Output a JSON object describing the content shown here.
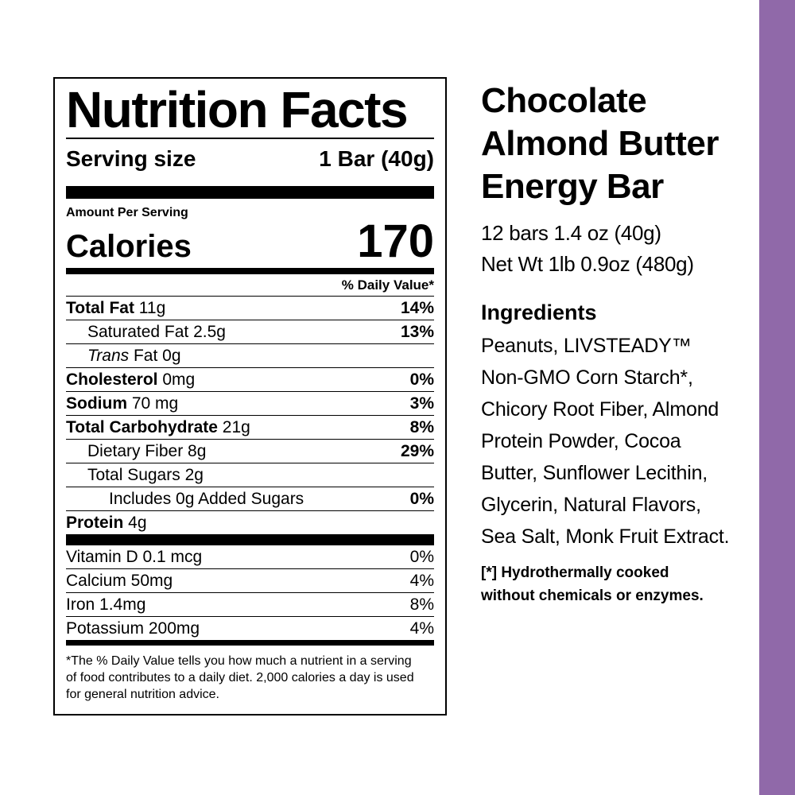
{
  "colors": {
    "accent_stripe": "#9069A9",
    "text": "#000000",
    "background": "#FFFFFF"
  },
  "nutrition_label": {
    "title": "Nutrition Facts",
    "serving_size_label": "Serving size",
    "serving_size_value": "1 Bar (40g)",
    "amount_per_serving": "Amount Per Serving",
    "calories_label": "Calories",
    "calories_value": "170",
    "daily_value_header": "% Daily Value*",
    "rows": [
      {
        "name": "Total Fat",
        "amount": "11g",
        "dv": "14%",
        "name_bold": true,
        "indent": 0,
        "italic": false,
        "dv_bold": true
      },
      {
        "name": "Saturated Fat",
        "amount": "2.5g",
        "dv": "13%",
        "name_bold": false,
        "indent": 1,
        "italic": false,
        "dv_bold": true
      },
      {
        "name": "Trans",
        "amount": "Fat 0g",
        "dv": "",
        "name_bold": false,
        "indent": 1,
        "italic": true,
        "dv_bold": true
      },
      {
        "name": "Cholesterol",
        "amount": "0mg",
        "dv": "0%",
        "name_bold": true,
        "indent": 0,
        "italic": false,
        "dv_bold": true
      },
      {
        "name": "Sodium",
        "amount": "70 mg",
        "dv": "3%",
        "name_bold": true,
        "indent": 0,
        "italic": false,
        "dv_bold": true
      },
      {
        "name": "Total Carbohydrate",
        "amount": "21g",
        "dv": "8%",
        "name_bold": true,
        "indent": 0,
        "italic": false,
        "dv_bold": true
      },
      {
        "name": "Dietary Fiber",
        "amount": "8g",
        "dv": "29%",
        "name_bold": false,
        "indent": 1,
        "italic": false,
        "dv_bold": true
      },
      {
        "name": "Total Sugars",
        "amount": "2g",
        "dv": "",
        "name_bold": false,
        "indent": 1,
        "italic": false,
        "dv_bold": true
      },
      {
        "name": "Includes 0g Added Sugars",
        "amount": "",
        "dv": "0%",
        "name_bold": false,
        "indent": 2,
        "italic": false,
        "dv_bold": true
      },
      {
        "name": "Protein",
        "amount": "4g",
        "dv": "",
        "name_bold": true,
        "indent": 0,
        "italic": false,
        "dv_bold": true
      }
    ],
    "micronutrients": [
      {
        "name": "Vitamin D 0.1 mcg",
        "dv": "0%"
      },
      {
        "name": "Calcium 50mg",
        "dv": "4%"
      },
      {
        "name": "Iron 1.4mg",
        "dv": "8%"
      },
      {
        "name": "Potassium 200mg",
        "dv": "4%"
      }
    ],
    "footnote": "*The % Daily Value tells you how much a nutrient in a serving\nof food contributes to a daily diet. 2,000 calories a day is used\nfor general nutrition advice."
  },
  "product": {
    "title": "Chocolate\nAlmond Butter\nEnergy Bar",
    "pack_info": "12 bars 1.4 oz (40g)\nNet Wt 1lb 0.9oz (480g)",
    "ingredients_heading": "Ingredients",
    "ingredients_text": "Peanuts, LIVSTEADY™\nNon-GMO Corn Starch*,\nChicory Root Fiber, Almond\nProtein Powder, Cocoa\nButter, Sunflower Lecithin,\nGlycerin, Natural Flavors,\nSea Salt, Monk Fruit Extract.",
    "footnote": "[*] Hydrothermally cooked\nwithout chemicals or enzymes."
  }
}
